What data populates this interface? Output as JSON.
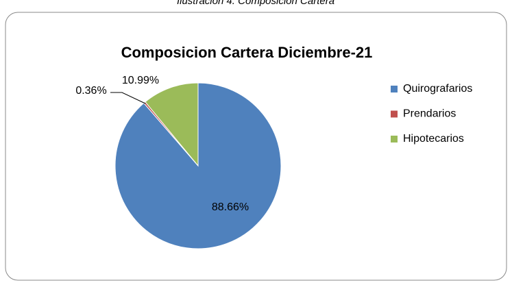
{
  "caption": "Ilustración 4. Composición Cartera",
  "chart_data": {
    "type": "pie",
    "title": "Composicion Cartera Diciembre-21",
    "categories": [
      "Quirografarios",
      "Prendarios",
      "Hipotecarios"
    ],
    "values": [
      88.66,
      0.36,
      10.99
    ],
    "value_labels": [
      "88.66%",
      "0.36%",
      "10.99%"
    ],
    "colors": [
      "#4f81bd",
      "#c0504d",
      "#9bbb59"
    ],
    "legend": "right"
  }
}
